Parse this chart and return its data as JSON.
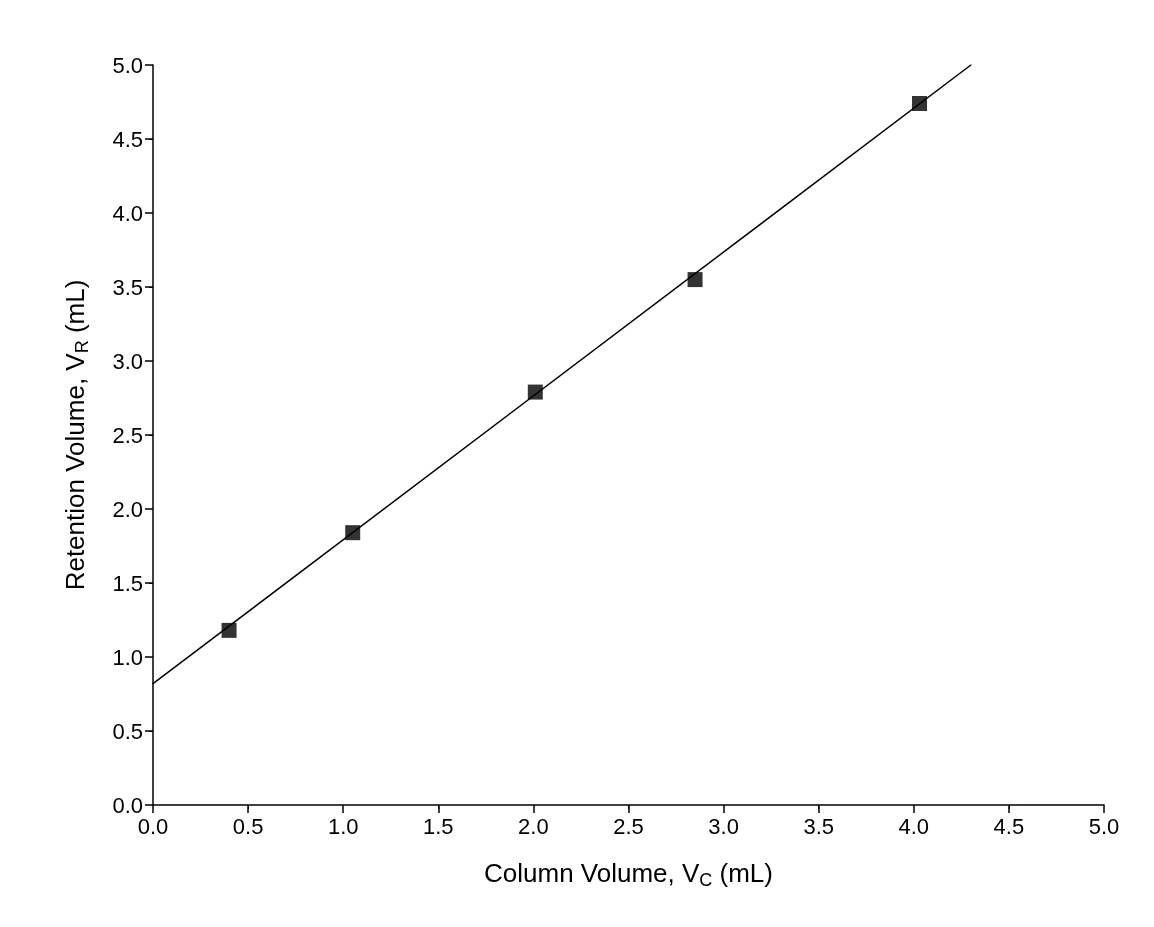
{
  "chart_data": {
    "type": "scatter",
    "xlabel": "Column Volume, V$_{C}$ (mL)",
    "ylabel": "Retention Volume, V$_{R}$ (mL)",
    "x": [
      0.4,
      1.05,
      2.01,
      2.85,
      4.03
    ],
    "series": [
      {
        "color": "#000000",
        "marker": "square",
        "values": [
          1.18,
          1.84,
          2.79,
          3.55,
          4.74
        ]
      },
      {
        "type": "line",
        "color": "#000000",
        "marker": "none",
        "line_style": "solid",
        "x": [
          0,
          4.3
        ],
        "values": [
          0.82,
          5.0
        ]
      }
    ],
    "xlim": [
      0,
      5
    ],
    "ylim": [
      0,
      5
    ],
    "xticks": [
      {
        "value": 0,
        "label": "0.0"
      },
      {
        "value": 0.5,
        "label": "0.5"
      },
      {
        "value": 1,
        "label": "1.0"
      },
      {
        "value": 1.5,
        "label": "1.5"
      },
      {
        "value": 2,
        "label": "2.0"
      },
      {
        "value": 2.5,
        "label": "2.5"
      },
      {
        "value": 3,
        "label": "3.0"
      },
      {
        "value": 3.5,
        "label": "3.5"
      },
      {
        "value": 4,
        "label": "4.0"
      },
      {
        "value": 4.5,
        "label": "4.5"
      },
      {
        "value": 5,
        "label": "5.0"
      }
    ],
    "yticks": [
      {
        "value": 0,
        "label": "0.0"
      },
      {
        "value": 0.5,
        "label": "0.5"
      },
      {
        "value": 1,
        "label": "1.0"
      },
      {
        "value": 1.5,
        "label": "1.5"
      },
      {
        "value": 2,
        "label": "2.0"
      },
      {
        "value": 2.5,
        "label": "2.5"
      },
      {
        "value": 3,
        "label": "3.0"
      },
      {
        "value": 3.5,
        "label": "3.5"
      },
      {
        "value": 4,
        "label": "4.0"
      },
      {
        "value": 4.5,
        "label": "4.5"
      },
      {
        "value": 5,
        "label": "5.0"
      }
    ],
    "grid": false
  }
}
